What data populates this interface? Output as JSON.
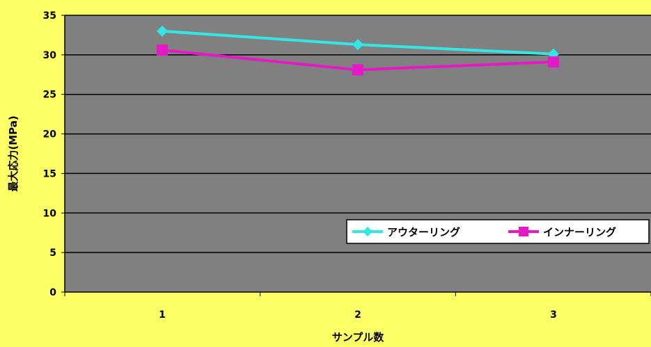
{
  "chart_data": {
    "type": "line",
    "categories": [
      "1",
      "2",
      "3"
    ],
    "series": [
      {
        "name": "アウターリング",
        "values": [
          33,
          31.3,
          30.1
        ],
        "color": "#33e6e6",
        "marker": "diamond"
      },
      {
        "name": "インナーリング",
        "values": [
          30.6,
          28.1,
          29.1
        ],
        "color": "#e619c8",
        "marker": "square"
      }
    ],
    "title": "",
    "xlabel": "サンプル数",
    "ylabel": "最大応力(MPa)",
    "ylim": [
      0,
      35
    ],
    "yticks": [
      0,
      5,
      10,
      15,
      20,
      25,
      30,
      35
    ],
    "grid": true,
    "legend_position": "bottom-right",
    "colors": {
      "page_background": "#ffff66",
      "plot_background": "#808080",
      "gridline": "#000000"
    }
  }
}
